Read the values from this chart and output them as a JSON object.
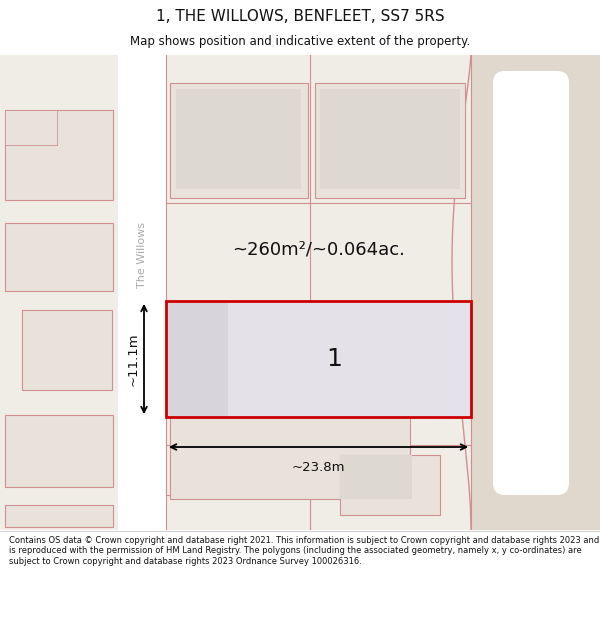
{
  "title": "1, THE WILLOWS, BENFLEET, SS7 5RS",
  "subtitle": "Map shows position and indicative extent of the property.",
  "footer": "Contains OS data © Crown copyright and database right 2021. This information is subject to Crown copyright and database rights 2023 and is reproduced with the permission of HM Land Registry. The polygons (including the associated geometry, namely x, y co-ordinates) are subject to Crown copyright and database rights 2023 Ordnance Survey 100026316.",
  "map_bg": "#f0ece6",
  "road_bg": "#ffffff",
  "building_fill": "#e8e2da",
  "building_stroke": "#d09090",
  "highlight_fill": "#e8e8ec",
  "highlight_stroke": "#cc0000",
  "right_zone_fill": "#e0d8cc",
  "area_text": "~260m²/~0.064ac.",
  "width_text": "~23.8m",
  "height_text": "~11.1m",
  "plot_number": "1",
  "street_name": "The Willows"
}
